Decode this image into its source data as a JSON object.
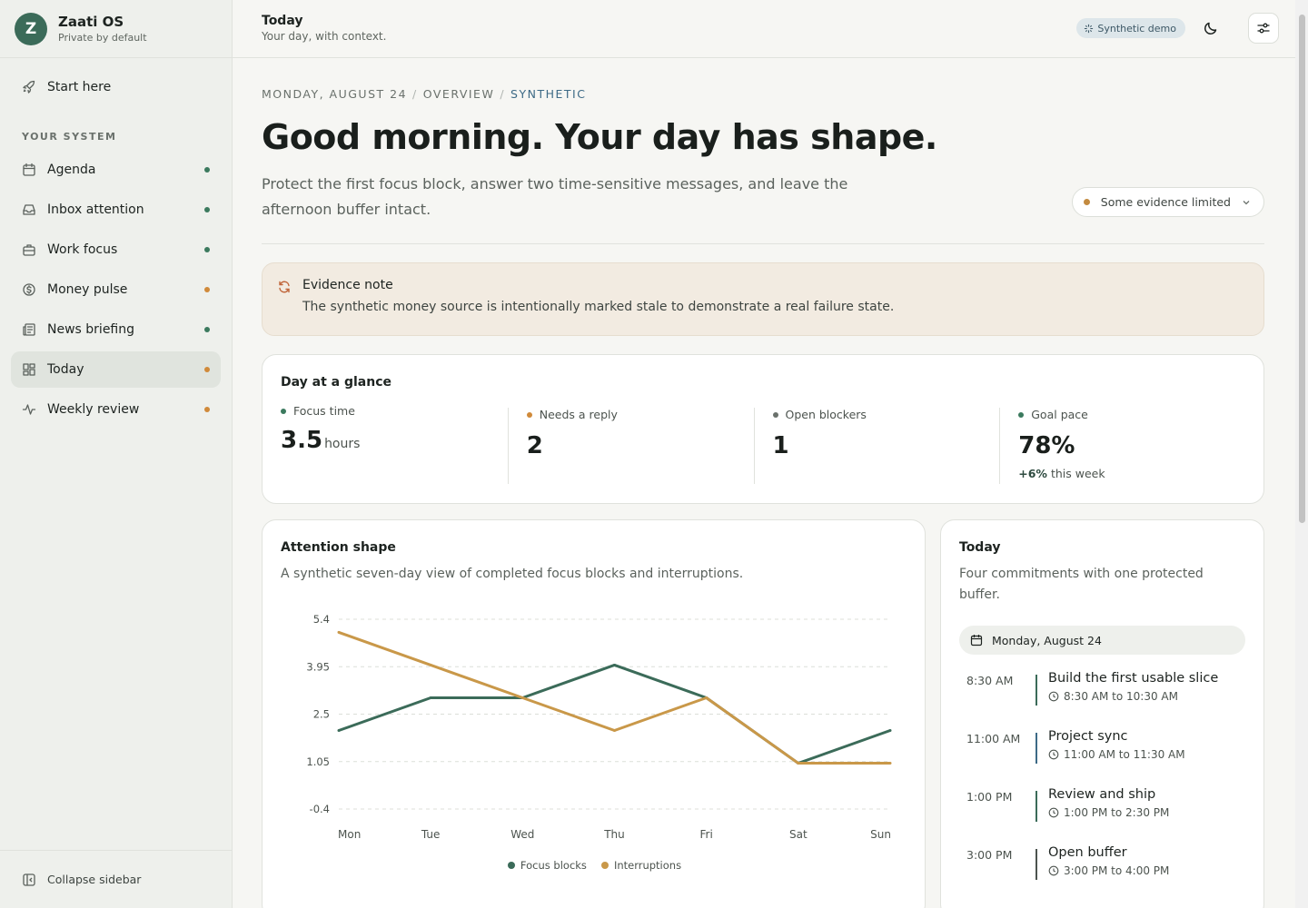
{
  "brand": {
    "initial": "Z",
    "name": "Zaati OS",
    "subtitle": "Private by default"
  },
  "sidebar": {
    "start": {
      "label": "Start here",
      "icon": "rocket-icon"
    },
    "section_label": "YOUR SYSTEM",
    "items": [
      {
        "label": "Agenda",
        "icon": "calendar-icon",
        "status_color": "#3b7a5e"
      },
      {
        "label": "Inbox attention",
        "icon": "inbox-icon",
        "status_color": "#3b7a5e"
      },
      {
        "label": "Work focus",
        "icon": "briefcase-icon",
        "status_color": "#3b7a5e"
      },
      {
        "label": "Money pulse",
        "icon": "dollar-icon",
        "status_color": "#d08a3a"
      },
      {
        "label": "News briefing",
        "icon": "newspaper-icon",
        "status_color": "#3b7a5e"
      },
      {
        "label": "Today",
        "icon": "grid-icon",
        "status_color": "#d08a3a",
        "active": true
      },
      {
        "label": "Weekly review",
        "icon": "activity-icon",
        "status_color": "#d08a3a"
      }
    ],
    "collapse_label": "Collapse sidebar"
  },
  "topbar": {
    "title": "Today",
    "subtitle": "Your day, with context.",
    "badge": "Synthetic demo"
  },
  "breadcrumb": {
    "date": "MONDAY, AUGUST 24",
    "section": "OVERVIEW",
    "mode": "SYNTHETIC"
  },
  "hero": {
    "headline": "Good morning. Your day has shape.",
    "lede": "Protect the first focus block, answer two time-sensitive messages, and leave the afternoon buffer intact.",
    "evidence_status": "Some evidence limited"
  },
  "note": {
    "title": "Evidence note",
    "body": "The synthetic money source is intentionally marked stale to demonstrate a real failure state."
  },
  "glance": {
    "title": "Day at a glance",
    "stats": [
      {
        "label": "Focus time",
        "value": "3.5",
        "unit": "hours",
        "color": "#3b7a5e"
      },
      {
        "label": "Needs a reply",
        "value": "2",
        "color": "#d08a3a"
      },
      {
        "label": "Open blockers",
        "value": "1",
        "color": "#6a716c"
      },
      {
        "label": "Goal pace",
        "value": "78%",
        "delta": "+6%",
        "delta_suffix": "this week",
        "color": "#3b7a5e"
      }
    ]
  },
  "attention": {
    "title": "Attention shape",
    "subtitle": "A synthetic seven-day view of completed focus blocks and interruptions."
  },
  "chart_data": {
    "type": "line",
    "categories": [
      "Mon",
      "Tue",
      "Wed",
      "Thu",
      "Fri",
      "Sat",
      "Sun"
    ],
    "yticks": [
      "5.4",
      "3.95",
      "2.5",
      "1.05",
      "-0.4"
    ],
    "ylim": [
      -0.4,
      5.4
    ],
    "series": [
      {
        "name": "Focus blocks",
        "color": "#3b6b59",
        "values": [
          2,
          3,
          3,
          4,
          3,
          1,
          2
        ]
      },
      {
        "name": "Interruptions",
        "color": "#c99849",
        "values": [
          5,
          4,
          3,
          2,
          3,
          1,
          1
        ]
      }
    ],
    "legend_position": "bottom"
  },
  "today": {
    "title": "Today",
    "subtitle": "Four commitments with one protected buffer.",
    "date": "Monday, August 24",
    "events": [
      {
        "time": "8:30 AM",
        "title": "Build the first usable slice",
        "range": "8:30 AM to 10:30 AM",
        "color": "#3b6b59"
      },
      {
        "time": "11:00 AM",
        "title": "Project sync",
        "range": "11:00 AM to 11:30 AM",
        "color": "#3d6a86"
      },
      {
        "time": "1:00 PM",
        "title": "Review and ship",
        "range": "1:00 PM to 2:30 PM",
        "color": "#3b6b59"
      },
      {
        "time": "3:00 PM",
        "title": "Open buffer",
        "range": "3:00 PM to 4:00 PM",
        "color": "#4c534e"
      }
    ]
  }
}
